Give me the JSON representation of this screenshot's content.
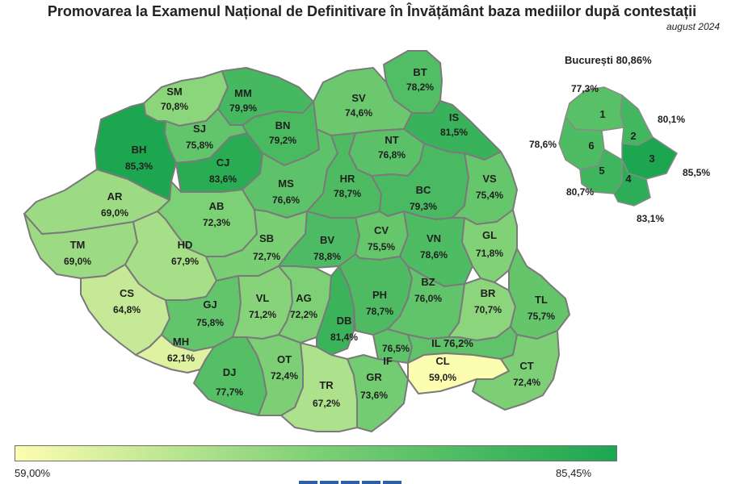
{
  "title": "Promovarea la Examenul Național de Definitivare în Învățământ baza mediilor după contestații",
  "subtitle": "august 2024",
  "bucharest": {
    "title": "București 80,86%",
    "sectors": [
      {
        "num": "1",
        "value": "77,3%"
      },
      {
        "num": "2",
        "value": "80,1%"
      },
      {
        "num": "3",
        "value": "85,5%"
      },
      {
        "num": "4",
        "value": "83,1%"
      },
      {
        "num": "5",
        "value": "80,7%"
      },
      {
        "num": "6",
        "value": "78,6%"
      }
    ]
  },
  "counties": [
    {
      "code": "SM",
      "value": "70,8%"
    },
    {
      "code": "MM",
      "value": "79,9%"
    },
    {
      "code": "BT",
      "value": "78,2%"
    },
    {
      "code": "SV",
      "value": "74,6%"
    },
    {
      "code": "SJ",
      "value": "75,8%"
    },
    {
      "code": "BH",
      "value": "85,3%"
    },
    {
      "code": "CJ",
      "value": "83,6%"
    },
    {
      "code": "BN",
      "value": "79,2%"
    },
    {
      "code": "IS",
      "value": "81,5%"
    },
    {
      "code": "NT",
      "value": "76,8%"
    },
    {
      "code": "AR",
      "value": "69,0%"
    },
    {
      "code": "AB",
      "value": "72,3%"
    },
    {
      "code": "MS",
      "value": "76,6%"
    },
    {
      "code": "HR",
      "value": "78,7%"
    },
    {
      "code": "BC",
      "value": "79,3%"
    },
    {
      "code": "VS",
      "value": "75,4%"
    },
    {
      "code": "TM",
      "value": "69,0%"
    },
    {
      "code": "HD",
      "value": "67,9%"
    },
    {
      "code": "SB",
      "value": "72,7%"
    },
    {
      "code": "BV",
      "value": "78,8%"
    },
    {
      "code": "CV",
      "value": "75,5%"
    },
    {
      "code": "VN",
      "value": "78,6%"
    },
    {
      "code": "GL",
      "value": "71,8%"
    },
    {
      "code": "CS",
      "value": "64,8%"
    },
    {
      "code": "GJ",
      "value": "75,8%"
    },
    {
      "code": "VL",
      "value": "71,2%"
    },
    {
      "code": "AG",
      "value": "72,2%"
    },
    {
      "code": "DB",
      "value": "81,4%"
    },
    {
      "code": "PH",
      "value": "78,7%"
    },
    {
      "code": "BZ",
      "value": "76,0%"
    },
    {
      "code": "BR",
      "value": "70,7%"
    },
    {
      "code": "TL",
      "value": "75,7%"
    },
    {
      "code": "MH",
      "value": "62,1%"
    },
    {
      "code": "DJ",
      "value": "77,7%"
    },
    {
      "code": "OT",
      "value": "72,4%"
    },
    {
      "code": "TR",
      "value": "67,2%"
    },
    {
      "code": "GR",
      "value": "73,6%"
    },
    {
      "code": "IF",
      "value": "76,5%"
    },
    {
      "code": "IL",
      "value": "76,2%"
    },
    {
      "code": "CL",
      "value": "59,0%"
    },
    {
      "code": "CT",
      "value": "72,4%"
    }
  ],
  "legend": {
    "min_label": "59,00%",
    "max_label": "85,45%",
    "min_color": "#fdfdb0",
    "max_color": "#1ca650"
  }
}
